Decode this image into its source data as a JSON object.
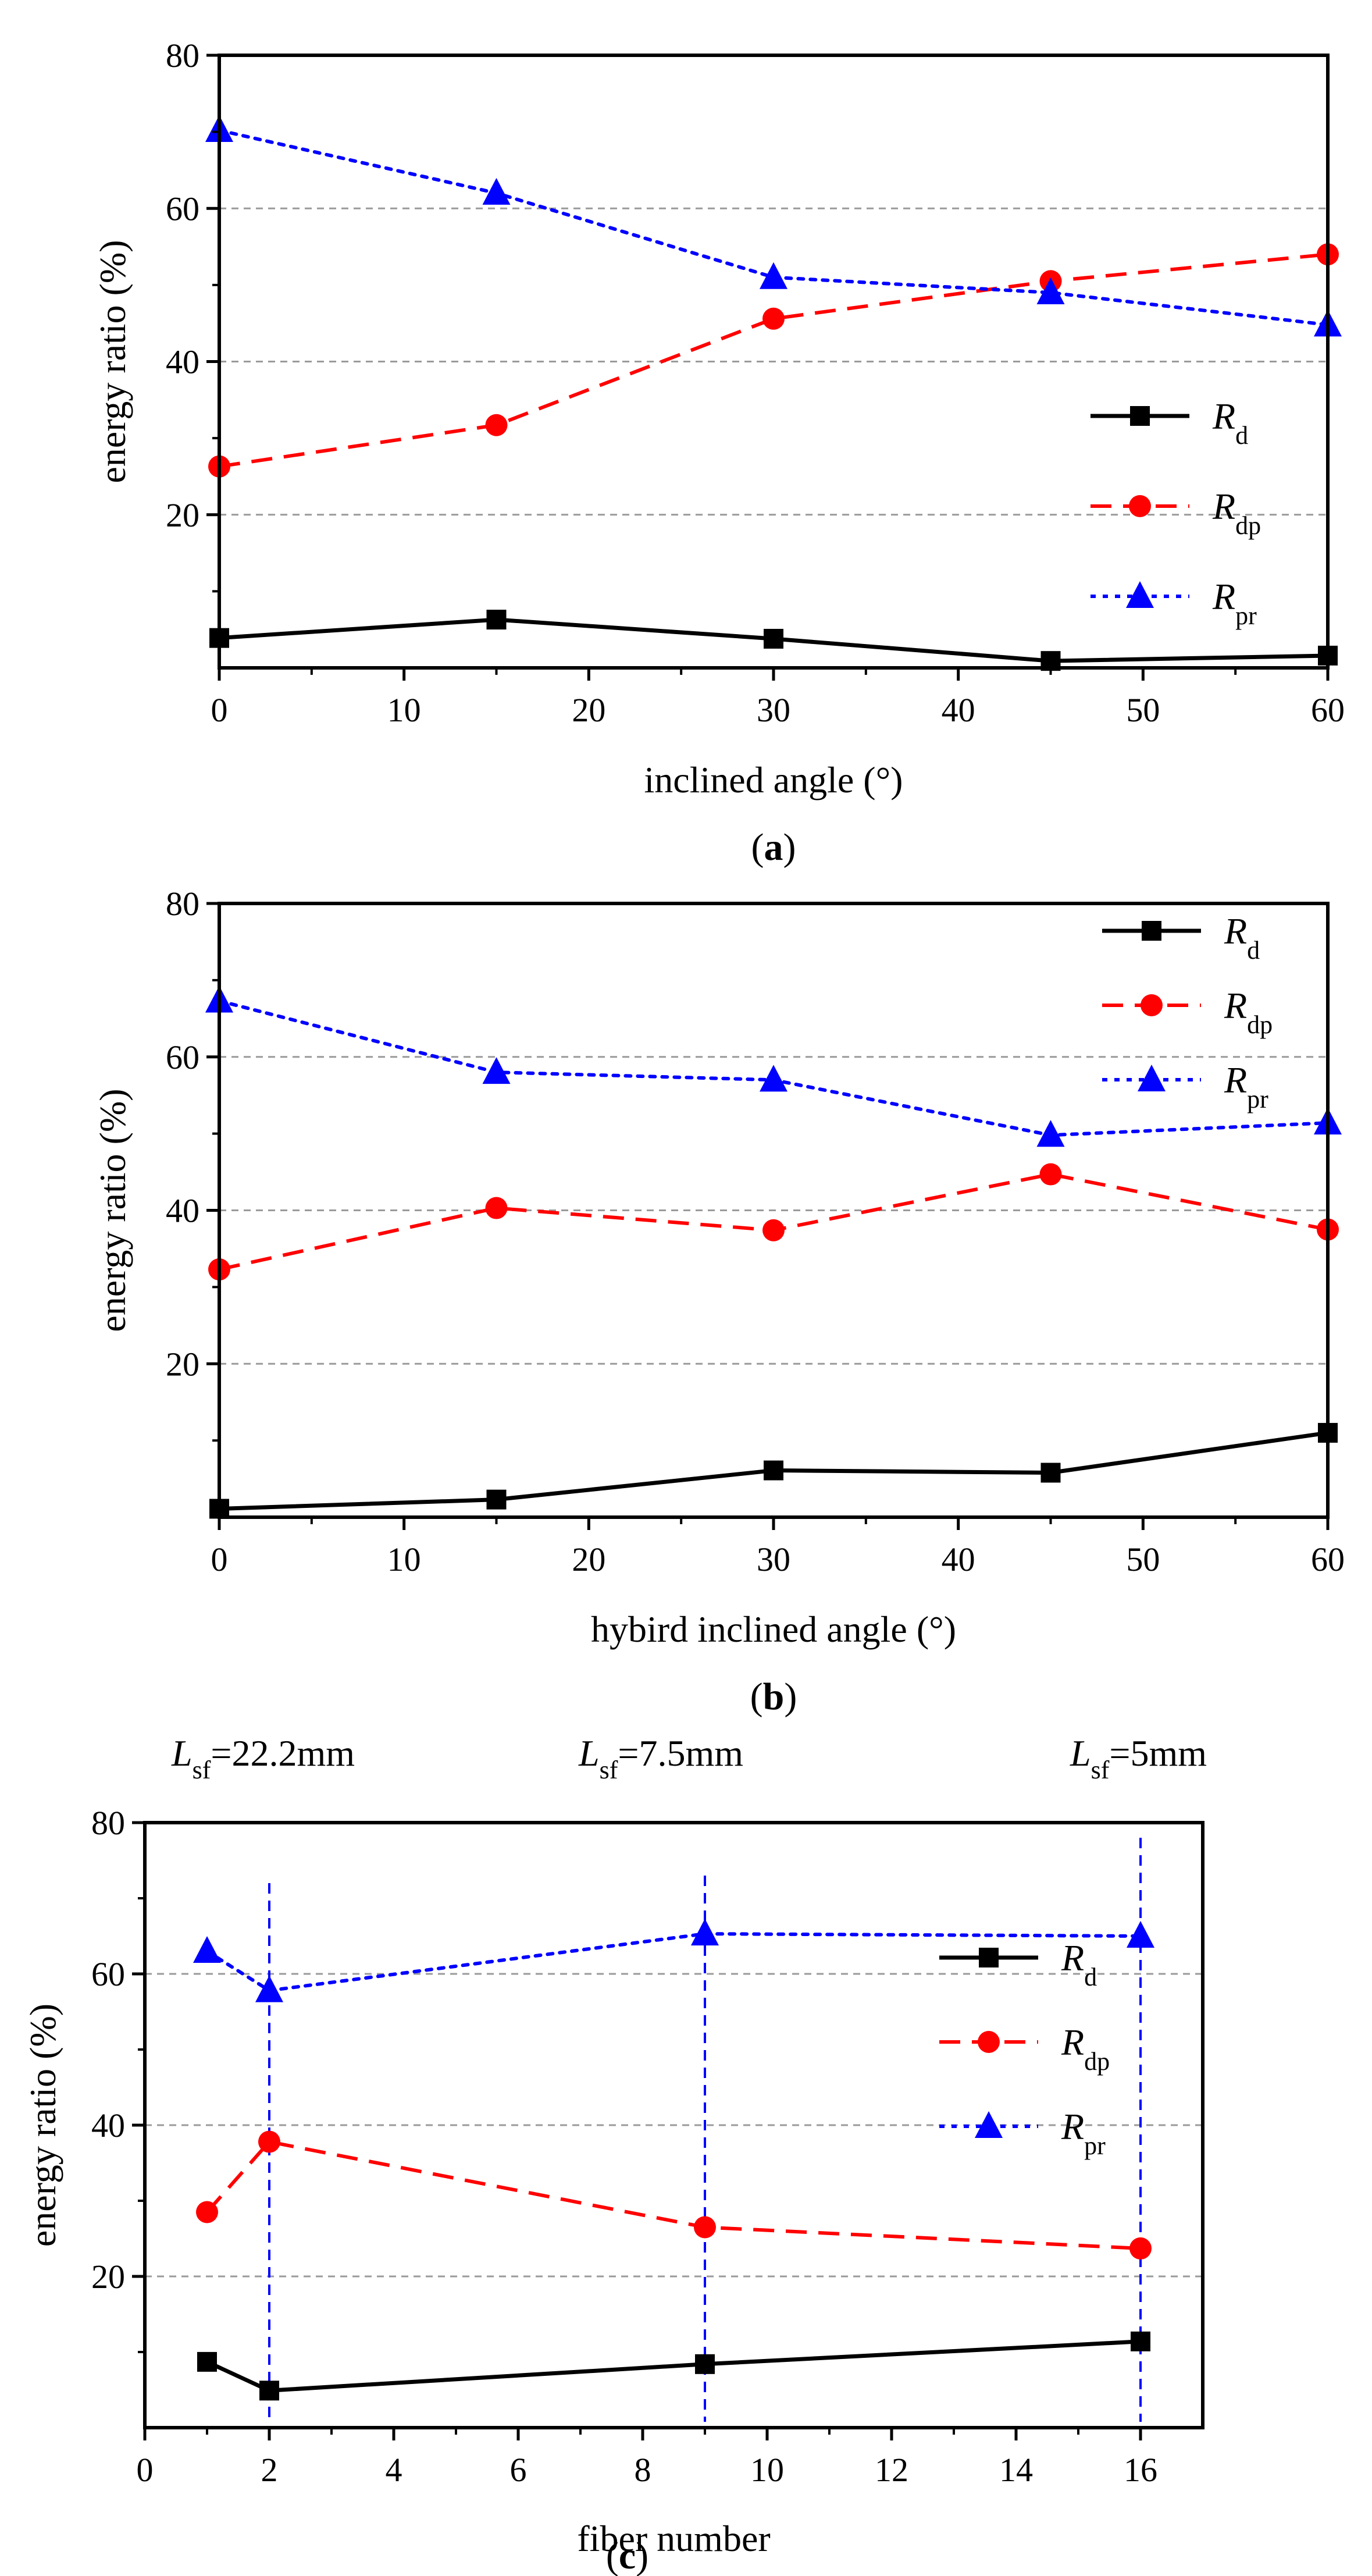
{
  "chart_data": [
    {
      "type": "line",
      "panel_label": "a",
      "xlabel": "inclined angle (°)",
      "ylabel": "energy ratio (%)",
      "xlim": [
        0,
        60
      ],
      "ylim": [
        0,
        80
      ],
      "xticks": [
        0,
        10,
        20,
        30,
        40,
        50,
        60
      ],
      "yticks": [
        20,
        40,
        60,
        80
      ],
      "grid": "horizontal dashed at 20, 40, 60",
      "legend_placement": "center-right",
      "x": [
        0,
        15,
        30,
        45,
        60
      ],
      "series": [
        {
          "name": "R",
          "sub": "d",
          "values": [
            3.9,
            6.3,
            3.8,
            0.9,
            1.6
          ],
          "color": "#000000",
          "dash": "solid",
          "marker": "square"
        },
        {
          "name": "R",
          "sub": "dp",
          "values": [
            26.3,
            31.7,
            45.6,
            50.5,
            54.0
          ],
          "color": "#ff0000",
          "dash": "dashed",
          "marker": "circle"
        },
        {
          "name": "R",
          "sub": "pr",
          "values": [
            70.2,
            62.0,
            51.0,
            49.0,
            44.8
          ],
          "color": "#0000ff",
          "dash": "dotted",
          "marker": "triangle"
        }
      ]
    },
    {
      "type": "line",
      "panel_label": "b",
      "xlabel": "hybird inclined angle (°)",
      "ylabel": "energy ratio (%)",
      "xlim": [
        0,
        60
      ],
      "ylim": [
        0,
        80
      ],
      "xticks": [
        0,
        10,
        20,
        30,
        40,
        50,
        60
      ],
      "yticks": [
        20,
        40,
        60,
        80
      ],
      "grid": "horizontal dashed at 20, 40, 60",
      "legend_placement": "top-right",
      "x": [
        0,
        15,
        30,
        45,
        60
      ],
      "series": [
        {
          "name": "R",
          "sub": "d",
          "values": [
            1.1,
            2.3,
            6.1,
            5.8,
            11.0
          ],
          "color": "#000000",
          "dash": "solid",
          "marker": "square"
        },
        {
          "name": "R",
          "sub": "dp",
          "values": [
            32.3,
            40.3,
            37.4,
            44.7,
            37.5
          ],
          "color": "#ff0000",
          "dash": "dashed",
          "marker": "circle"
        },
        {
          "name": "R",
          "sub": "pr",
          "values": [
            67.3,
            58.0,
            57.0,
            49.8,
            51.4
          ],
          "color": "#0000ff",
          "dash": "dotted",
          "marker": "triangle"
        }
      ]
    },
    {
      "type": "line",
      "panel_label": "c",
      "xlabel": "fiber number",
      "ylabel": "energy ratio (%)",
      "xlim": [
        0,
        17
      ],
      "ylim": [
        0,
        80
      ],
      "xticks": [
        0,
        2,
        4,
        6,
        8,
        10,
        12,
        14,
        16
      ],
      "yticks": [
        20,
        40,
        60,
        80
      ],
      "grid": "horizontal dashed at 20, 40, 60",
      "legend_placement": "center-right",
      "x": [
        1,
        2,
        9,
        16
      ],
      "series": [
        {
          "name": "R",
          "sub": "d",
          "values": [
            8.7,
            4.9,
            8.4,
            11.4
          ],
          "color": "#000000",
          "dash": "solid",
          "marker": "square"
        },
        {
          "name": "R",
          "sub": "dp",
          "values": [
            28.5,
            37.8,
            26.5,
            23.7
          ],
          "color": "#ff0000",
          "dash": "dashed",
          "marker": "circle"
        },
        {
          "name": "R",
          "sub": "pr",
          "values": [
            63.0,
            57.8,
            65.3,
            65.0
          ],
          "color": "#0000ff",
          "dash": "dotted",
          "marker": "triangle"
        }
      ],
      "vertical_lines": [
        {
          "x": 2,
          "top": 72
        },
        {
          "x": 9,
          "top": 73
        },
        {
          "x": 16,
          "top": 78
        }
      ],
      "annotations": [
        {
          "main": "L",
          "sub": "sf",
          "rest": "=22.2mm"
        },
        {
          "main": "L",
          "sub": "sf",
          "rest": "=7.5mm"
        },
        {
          "main": "L",
          "sub": "sf",
          "rest": "=5mm"
        }
      ]
    }
  ]
}
